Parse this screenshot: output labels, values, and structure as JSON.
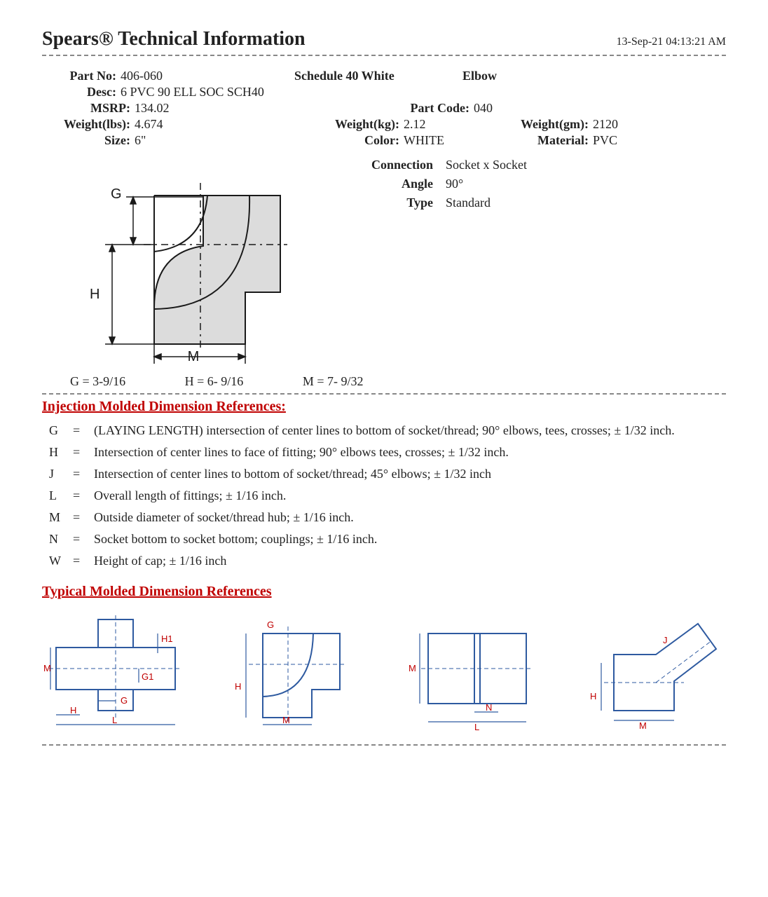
{
  "header": {
    "title": "Spears® Technical Information",
    "timestamp": "13-Sep-21 04:13:21 AM"
  },
  "part": {
    "part_no_label": "Part No:",
    "part_no": "406-060",
    "schedule": "Schedule 40 White",
    "category": "Elbow",
    "desc_label": "Desc:",
    "desc": "6 PVC 90 ELL SOC SCH40",
    "msrp_label": "MSRP:",
    "msrp": "134.02",
    "part_code_label": "Part Code:",
    "part_code": "040",
    "weight_lbs_label": "Weight(lbs):",
    "weight_lbs": "4.674",
    "weight_kg_label": "Weight(kg):",
    "weight_kg": "2.12",
    "weight_gm_label": "Weight(gm):",
    "weight_gm": "2120",
    "size_label": "Size:",
    "size": "6\"",
    "color_label": "Color:",
    "color": "WHITE",
    "material_label": "Material:",
    "material": "PVC"
  },
  "attributes": {
    "connection_label": "Connection",
    "connection": "Socket x Socket",
    "angle_label": "Angle",
    "angle": "90°",
    "type_label": "Type",
    "type": "Standard"
  },
  "diagram": {
    "labels": {
      "G": "G",
      "H": "H",
      "M": "M"
    },
    "colors": {
      "fill": "#dcdcdc",
      "stroke": "#1a1a1a",
      "dash": "#1a1a1a",
      "text": "#1a1a1a"
    }
  },
  "dimensions": {
    "G": "G  =  3-9/16",
    "H": "H  =  6- 9/16",
    "M": "M  =  7- 9/32"
  },
  "sections": {
    "injection": "Injection Molded Dimension References:",
    "typical": "Typical Molded Dimension References"
  },
  "references": [
    {
      "sym": "G",
      "text": "(LAYING LENGTH) intersection of center lines to bottom of socket/thread;  90° elbows, tees, crosses; ± 1/32 inch."
    },
    {
      "sym": "H",
      "text": "Intersection of center lines to face of fitting; 90° elbows tees, crosses; ± 1/32 inch."
    },
    {
      "sym": "J",
      "text": "Intersection of center lines to bottom of socket/thread; 45° elbows; ± 1/32 inch"
    },
    {
      "sym": "L",
      "text": "Overall length of fittings; ± 1/16 inch."
    },
    {
      "sym": "M",
      "text": "Outside diameter of socket/thread hub; ± 1/16 inch."
    },
    {
      "sym": "N",
      "text": "Socket bottom to socket bottom; couplings; ± 1/16 inch."
    },
    {
      "sym": "W",
      "text": "Height of cap; ± 1/16 inch"
    }
  ],
  "thumb_colors": {
    "fill": "#ffffff",
    "stroke": "#2e5aa0",
    "label": "#c00000",
    "dash": "#2e5aa0"
  },
  "thumb_labels": {
    "M": "M",
    "H": "H",
    "G": "G",
    "L": "L",
    "N": "N",
    "J": "J",
    "H1": "H1",
    "G1": "G1"
  }
}
